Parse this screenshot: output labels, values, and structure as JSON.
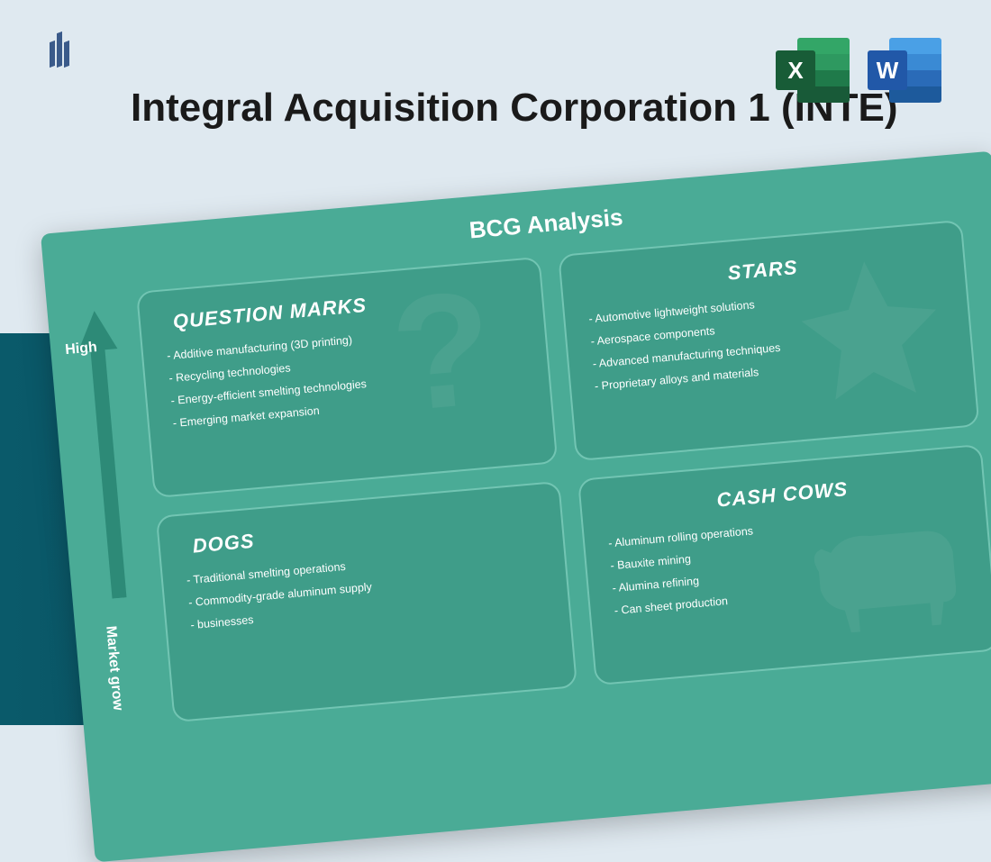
{
  "header": {
    "title": "Integral Acquisition Corporation 1 (INTE)",
    "logo_color": "#3a5a8a",
    "icons": {
      "excel_letter": "X",
      "word_letter": "W"
    }
  },
  "colors": {
    "page_top_bg": "#dfe9f0",
    "page_bottom_bg_from": "#0a5a6a",
    "page_bottom_bg_to": "#0a3a4a",
    "card_bg": "#4aab96",
    "quad_bg": "#3f9d89",
    "quad_border": "#72c5b3",
    "text_light": "#ffffff",
    "title_color": "#1a1a1a",
    "excel_front": "#185c37",
    "word_front": "#2158a8"
  },
  "bcg": {
    "type": "matrix",
    "title": "BCG Analysis",
    "rotation_deg": -5,
    "axis": {
      "high_label": "High",
      "y_label": "Market grow"
    },
    "quadrants": [
      {
        "key": "question_marks",
        "title": "QUESTION MARKS",
        "side": "left",
        "watermark": "?",
        "items": [
          "Additive manufacturing (3D printing)",
          "Recycling technologies",
          "Energy-efficient smelting technologies",
          "Emerging market expansion"
        ]
      },
      {
        "key": "stars",
        "title": "STARS",
        "side": "right",
        "watermark": "star",
        "items": [
          "Automotive lightweight solutions",
          "Aerospace components",
          "Advanced manufacturing techniques",
          "Proprietary alloys and materials"
        ]
      },
      {
        "key": "dogs",
        "title": "DOGS",
        "side": "left",
        "watermark": "",
        "items": [
          "Traditional smelting operations",
          "Commodity-grade aluminum supply",
          "businesses"
        ]
      },
      {
        "key": "cash_cows",
        "title": "CASH COWS",
        "side": "right",
        "watermark": "cow",
        "items": [
          "Aluminum rolling operations",
          "Bauxite mining",
          "Alumina refining",
          "Can sheet production"
        ]
      }
    ]
  }
}
